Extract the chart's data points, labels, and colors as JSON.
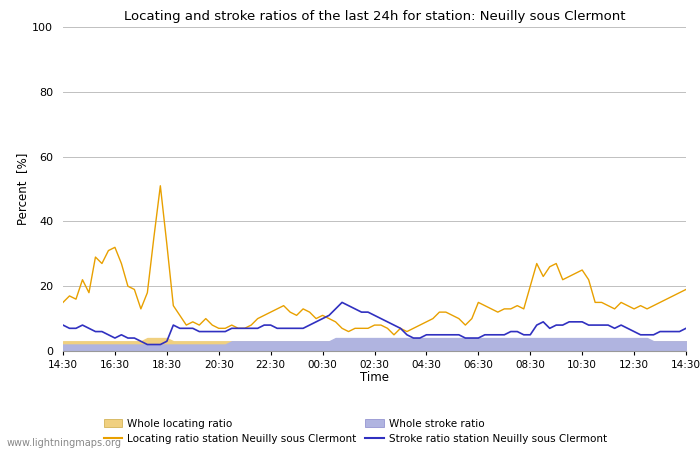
{
  "title": "Locating and stroke ratios of the last 24h for station: Neuilly sous Clermont",
  "xlabel": "Time",
  "ylabel": "Percent  [%]",
  "ylim": [
    0,
    100
  ],
  "yticks": [
    0,
    20,
    40,
    60,
    80,
    100
  ],
  "xtick_labels": [
    "14:30",
    "16:30",
    "18:30",
    "20:30",
    "22:30",
    "00:30",
    "02:30",
    "04:30",
    "06:30",
    "08:30",
    "10:30",
    "12:30",
    "14:30"
  ],
  "watermark": "www.lightningmaps.org",
  "locating_line_color": "#e8a000",
  "locating_fill_color": "#f0d080",
  "stroke_line_color": "#3030c0",
  "stroke_fill_color": "#b0b4e0",
  "background_color": "#ffffff",
  "plot_bg_color": "#ffffff",
  "grid_color": "#c0c0c0",
  "n_points": 97,
  "locating_line": [
    15,
    17,
    16,
    22,
    18,
    29,
    27,
    31,
    32,
    27,
    20,
    19,
    13,
    18,
    35,
    51,
    33,
    14,
    11,
    8,
    9,
    8,
    10,
    8,
    7,
    7,
    8,
    7,
    7,
    8,
    10,
    11,
    12,
    13,
    14,
    12,
    11,
    13,
    12,
    10,
    11,
    10,
    9,
    7,
    6,
    7,
    7,
    7,
    8,
    8,
    7,
    5,
    7,
    6,
    7,
    8,
    9,
    10,
    12,
    12,
    11,
    10,
    8,
    10,
    15,
    14,
    13,
    12,
    13,
    13,
    14,
    13,
    20,
    27,
    23,
    26,
    27,
    22,
    23,
    24,
    25,
    22,
    15,
    15,
    14,
    13,
    15,
    14,
    13,
    14,
    13,
    14,
    15,
    16,
    17,
    18,
    19
  ],
  "locating_fill": [
    3,
    3,
    3,
    3,
    3,
    3,
    3,
    3,
    3,
    3,
    3,
    3,
    3,
    4,
    4,
    4,
    4,
    3,
    3,
    3,
    3,
    3,
    3,
    3,
    3,
    3,
    3,
    3,
    3,
    3,
    3,
    3,
    3,
    3,
    3,
    3,
    3,
    3,
    3,
    3,
    3,
    3,
    3,
    3,
    3,
    3,
    3,
    3,
    3,
    3,
    3,
    3,
    3,
    3,
    3,
    3,
    3,
    3,
    3,
    3,
    3,
    3,
    3,
    3,
    3,
    3,
    3,
    3,
    3,
    3,
    3,
    3,
    3,
    3,
    3,
    3,
    3,
    3,
    3,
    3,
    3,
    3,
    3,
    3,
    3,
    3,
    3,
    3,
    3,
    3,
    3,
    3,
    3,
    3,
    3,
    3,
    3
  ],
  "stroke_line": [
    8,
    7,
    7,
    8,
    7,
    6,
    6,
    5,
    4,
    5,
    4,
    4,
    3,
    2,
    2,
    2,
    3,
    8,
    7,
    7,
    7,
    6,
    6,
    6,
    6,
    6,
    7,
    7,
    7,
    7,
    7,
    8,
    8,
    7,
    7,
    7,
    7,
    7,
    8,
    9,
    10,
    11,
    13,
    15,
    14,
    13,
    12,
    12,
    11,
    10,
    9,
    8,
    7,
    5,
    4,
    4,
    5,
    5,
    5,
    5,
    5,
    5,
    4,
    4,
    4,
    5,
    5,
    5,
    5,
    6,
    6,
    5,
    5,
    8,
    9,
    7,
    8,
    8,
    9,
    9,
    9,
    8,
    8,
    8,
    8,
    7,
    8,
    7,
    6,
    5,
    5,
    5,
    6,
    6,
    6,
    6,
    7
  ],
  "stroke_fill": [
    2,
    2,
    2,
    2,
    2,
    2,
    2,
    2,
    2,
    2,
    2,
    2,
    2,
    2,
    2,
    2,
    2,
    2,
    2,
    2,
    2,
    2,
    2,
    2,
    2,
    2,
    3,
    3,
    3,
    3,
    3,
    3,
    3,
    3,
    3,
    3,
    3,
    3,
    3,
    3,
    3,
    3,
    4,
    4,
    4,
    4,
    4,
    4,
    4,
    4,
    4,
    4,
    4,
    4,
    4,
    4,
    4,
    4,
    4,
    4,
    4,
    4,
    4,
    4,
    4,
    4,
    4,
    4,
    4,
    4,
    4,
    4,
    4,
    4,
    4,
    4,
    4,
    4,
    4,
    4,
    4,
    4,
    4,
    4,
    4,
    4,
    4,
    4,
    4,
    4,
    4,
    3,
    3,
    3,
    3,
    3,
    3
  ]
}
